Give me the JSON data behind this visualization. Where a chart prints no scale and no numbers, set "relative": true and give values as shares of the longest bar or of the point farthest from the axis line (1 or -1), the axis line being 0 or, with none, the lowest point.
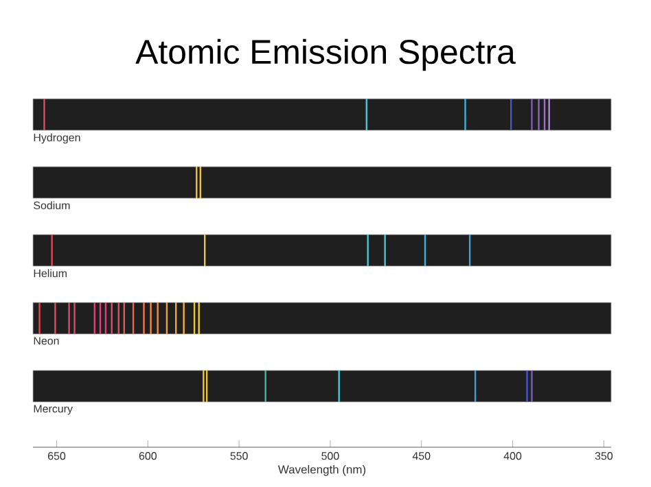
{
  "chart_data": [
    {
      "type": "bar",
      "relative": true,
      "title": "Atomic Emission Spectra",
      "subtitle": "Hydrogen",
      "xlim": [
        663,
        346
      ],
      "tick_labels": false,
      "x": [
        656.8,
        480.1,
        426,
        400.9,
        389.5,
        385.7,
        382.5,
        380
      ],
      "values": [
        1,
        1,
        1,
        1,
        1,
        1,
        1,
        1
      ],
      "colors": [
        "#e04a58",
        "#4cc4d4",
        "#3fb0d8",
        "#4a56c8",
        "#7a5cc8",
        "#8a64c8",
        "#9a70c8",
        "#b08ad0"
      ]
    },
    {
      "type": "bar",
      "relative": true,
      "subtitle": "Sodium",
      "xlim": [
        663,
        346
      ],
      "tick_labels": false,
      "x": [
        573.3,
        571.2
      ],
      "values": [
        1,
        1
      ],
      "colors": [
        "#f0c438",
        "#f0c438"
      ]
    },
    {
      "type": "bar",
      "relative": true,
      "subtitle": "Helium",
      "xlim": [
        663,
        346
      ],
      "tick_labels": false,
      "x": [
        652.6,
        568.8,
        479.4,
        470,
        448,
        423.5
      ],
      "values": [
        1,
        1,
        1,
        1,
        1,
        1
      ],
      "colors": [
        "#e04a58",
        "#f0c438",
        "#4cc4d4",
        "#4cc4d4",
        "#3fb0d8",
        "#3fa0d8"
      ]
    },
    {
      "type": "bar",
      "relative": true,
      "subtitle": "Neon",
      "xlim": [
        663,
        346
      ],
      "tick_labels": false,
      "x": [
        659.4,
        650.8,
        643.2,
        640.2,
        629.2,
        626.1,
        623.1,
        619.8,
        616.0,
        613.0,
        608.0,
        602.2,
        598.4,
        594.6,
        589.6,
        584.6,
        580.3,
        574.5,
        572.0
      ],
      "values": [
        1,
        1,
        1,
        1,
        1,
        1,
        1,
        1,
        1,
        1,
        1,
        1,
        1,
        1,
        1,
        1,
        1,
        1,
        1
      ],
      "colors": [
        "#e04a58",
        "#e04a58",
        "#e04a68",
        "#e04a68",
        "#e0407a",
        "#e0407a",
        "#e0407a",
        "#e04a70",
        "#e05060",
        "#e05a58",
        "#e86a50",
        "#f07a48",
        "#f08a48",
        "#f09048",
        "#f0a048",
        "#f0a848",
        "#f0b040",
        "#f0c438",
        "#f0d040"
      ]
    },
    {
      "type": "bar",
      "relative": true,
      "subtitle": "Mercury",
      "xlabel": "Wavelength (nm)",
      "xlim": [
        663,
        346
      ],
      "xticks": [
        650,
        600,
        550,
        500,
        450,
        400,
        350
      ],
      "tick_labels": "x",
      "x": [
        569.5,
        567.7,
        535.5,
        495.2,
        420.5,
        392.1,
        389.5
      ],
      "values": [
        1,
        1,
        1,
        1,
        1,
        1,
        1
      ],
      "colors": [
        "#f0c438",
        "#f0c438",
        "#40b8a0",
        "#4cc4d4",
        "#3fa0d8",
        "#4a56c8",
        "#7a5cc8"
      ]
    }
  ]
}
